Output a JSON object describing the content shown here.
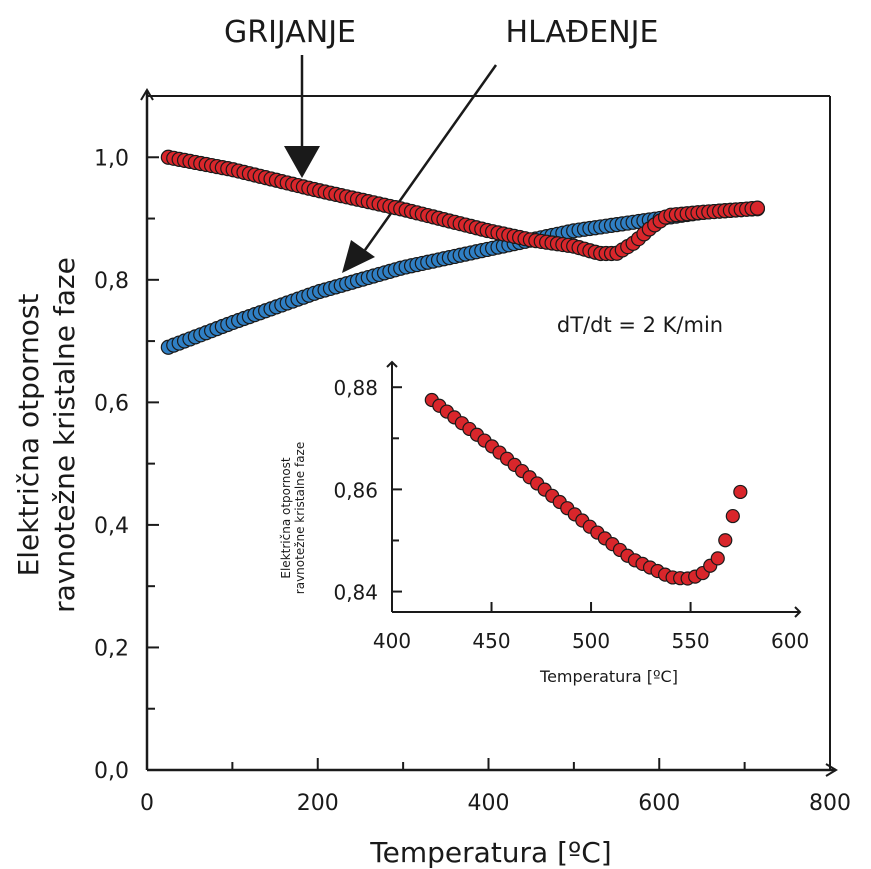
{
  "chart_data": [
    {
      "type": "scatter",
      "xlabel": "Temperatura [ºC]",
      "ylabel_lines": [
        "Električna otpornost",
        "ravnotežne kristalne faze"
      ],
      "xlim": [
        0,
        800
      ],
      "ylim": [
        0,
        1.1
      ],
      "x_ticks": [
        0,
        200,
        400,
        600,
        800
      ],
      "x_tick_labels": [
        "0",
        "200",
        "400",
        "600",
        "800"
      ],
      "y_ticks": [
        0,
        0.2,
        0.4,
        0.6,
        0.8,
        1.0
      ],
      "y_tick_labels": [
        "0,0",
        "0,2",
        "0,4",
        "0,6",
        "0,8",
        "1,0"
      ],
      "annotations": [
        {
          "text": "GRIJANJE",
          "points_to": [
            178,
            0.96
          ]
        },
        {
          "text": "HLAĐENJE",
          "points_to": [
            225,
            0.81
          ]
        },
        {
          "text": "dT/dt = 2 K/min"
        }
      ],
      "series": [
        {
          "color": "#2f7fc4",
          "x": [
            25,
            100,
            200,
            300,
            400,
            500,
            550,
            600,
            650,
            700,
            715
          ],
          "y": [
            0.69,
            0.73,
            0.78,
            0.82,
            0.85,
            0.88,
            0.89,
            0.9,
            0.91,
            0.915,
            0.916
          ]
        },
        {
          "color": "#d9262b",
          "x": [
            25,
            100,
            200,
            300,
            400,
            450,
            500,
            530,
            550,
            570,
            590,
            610,
            650,
            700,
            715
          ],
          "y": [
            1.0,
            0.98,
            0.946,
            0.915,
            0.88,
            0.865,
            0.855,
            0.843,
            0.843,
            0.86,
            0.885,
            0.905,
            0.91,
            0.915,
            0.917
          ]
        }
      ]
    },
    {
      "type": "scatter",
      "xlabel": "Temperatura [ºC]",
      "ylabel_lines": [
        "Električna otpornost",
        "ravnotežne kristalne faze"
      ],
      "xlim": [
        400,
        610
      ],
      "ylim": [
        0.836,
        0.882
      ],
      "x_ticks": [
        400,
        450,
        500,
        550,
        600
      ],
      "x_tick_labels": [
        "400",
        "450",
        "500",
        "550",
        "600"
      ],
      "y_ticks": [
        0.84,
        0.86,
        0.88
      ],
      "y_tick_labels": [
        "0,84",
        "0,86",
        "0,88"
      ],
      "series": [
        {
          "color": "#d9262b",
          "x": [
            420,
            450,
            475,
            500,
            520,
            540,
            548,
            555,
            565,
            575
          ],
          "y": [
            0.8775,
            0.8685,
            0.8605,
            0.8525,
            0.8465,
            0.8428,
            0.8425,
            0.8432,
            0.847,
            0.8595
          ]
        }
      ]
    }
  ]
}
